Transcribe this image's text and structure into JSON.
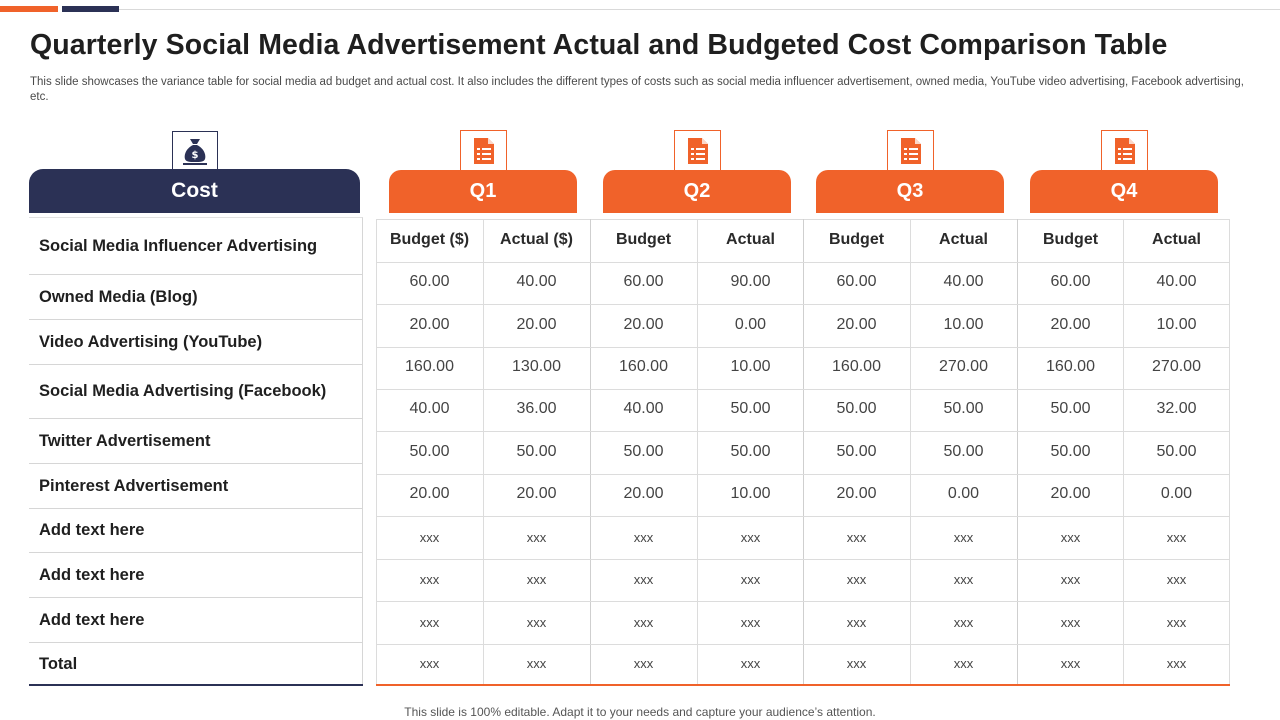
{
  "slide": {
    "title": "Quarterly Social Media Advertisement Actual and Budgeted Cost Comparison Table",
    "subtitle": "This slide showcases the variance table for social media ad budget and actual cost. It also includes the different types of costs such as social media influencer advertisement, owned media, YouTube video advertising, Facebook advertising, etc.",
    "footer": "This slide is 100% editable. Adapt it to your needs and capture your audience’s attention."
  },
  "colors": {
    "navy": "#2b3155",
    "orange": "#f0622a"
  },
  "cost": {
    "header": "Cost",
    "icon": "money-bag-icon",
    "rows": [
      "Social Media Influencer Advertising",
      "Owned Media (Blog)",
      "Video Advertising (YouTube)",
      "Social Media Advertising (Facebook)",
      "Twitter Advertisement",
      "Pinterest Advertisement",
      "Add text here",
      "Add text here",
      "Add text here",
      "Total"
    ]
  },
  "quarters": [
    {
      "label": "Q1",
      "icon": "document-list-icon",
      "columns": [
        "Budget ($)",
        "Actual ($)"
      ]
    },
    {
      "label": "Q2",
      "icon": "document-list-icon",
      "columns": [
        "Budget",
        "Actual"
      ]
    },
    {
      "label": "Q3",
      "icon": "document-list-icon",
      "columns": [
        "Budget",
        "Actual"
      ]
    },
    {
      "label": "Q4",
      "icon": "document-list-icon",
      "columns": [
        "Budget",
        "Actual"
      ]
    }
  ],
  "table_rows": [
    [
      "60.00",
      "40.00",
      "60.00",
      "90.00",
      "60.00",
      "40.00",
      "60.00",
      "40.00"
    ],
    [
      "20.00",
      "20.00",
      "20.00",
      "0.00",
      "20.00",
      "10.00",
      "20.00",
      "10.00"
    ],
    [
      "160.00",
      "130.00",
      "160.00",
      "10.00",
      "160.00",
      "270.00",
      "160.00",
      "270.00"
    ],
    [
      "40.00",
      "36.00",
      "40.00",
      "50.00",
      "50.00",
      "50.00",
      "50.00",
      "32.00"
    ],
    [
      "50.00",
      "50.00",
      "50.00",
      "50.00",
      "50.00",
      "50.00",
      "50.00",
      "50.00"
    ],
    [
      "20.00",
      "20.00",
      "20.00",
      "10.00",
      "20.00",
      "0.00",
      "20.00",
      "0.00"
    ],
    [
      "xxx",
      "xxx",
      "xxx",
      "xxx",
      "xxx",
      "xxx",
      "xxx",
      "xxx"
    ],
    [
      "xxx",
      "xxx",
      "xxx",
      "xxx",
      "xxx",
      "xxx",
      "xxx",
      "xxx"
    ],
    [
      "xxx",
      "xxx",
      "xxx",
      "xxx",
      "xxx",
      "xxx",
      "xxx",
      "xxx"
    ],
    [
      "xxx",
      "xxx",
      "xxx",
      "xxx",
      "xxx",
      "xxx",
      "xxx",
      "xxx"
    ]
  ]
}
